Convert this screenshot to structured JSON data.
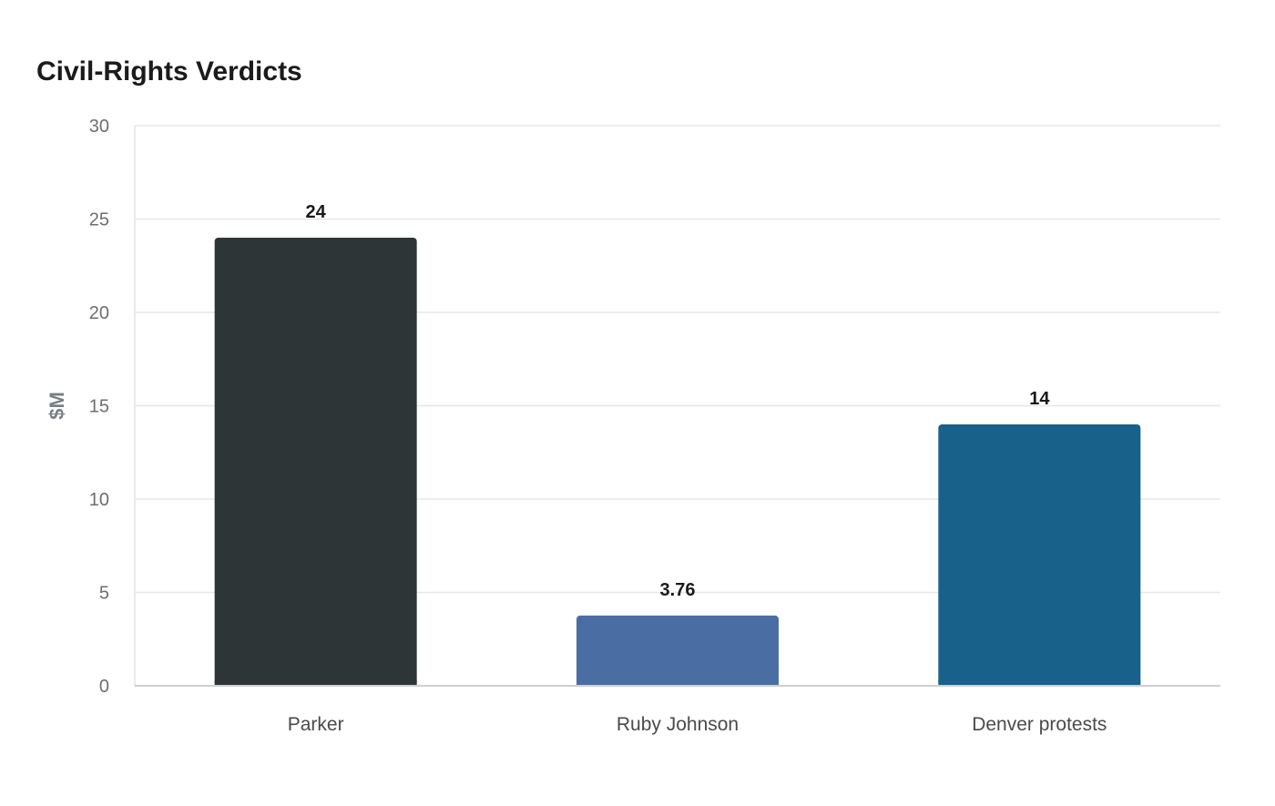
{
  "chart_data": {
    "type": "bar",
    "title": "Civil-Rights Verdicts",
    "xlabel": "",
    "ylabel": "$M",
    "ylim": [
      0,
      30
    ],
    "yticks": [
      0,
      5,
      10,
      15,
      20,
      25,
      30
    ],
    "categories": [
      "Parker",
      "Ruby Johnson",
      "Denver protests"
    ],
    "values": [
      24,
      3.76,
      14
    ],
    "value_labels": [
      "24",
      "3.76",
      "14"
    ],
    "bar_colors": [
      "#2e3537",
      "#4a6ea3",
      "#17618a"
    ],
    "grid": true,
    "legend": "none"
  }
}
